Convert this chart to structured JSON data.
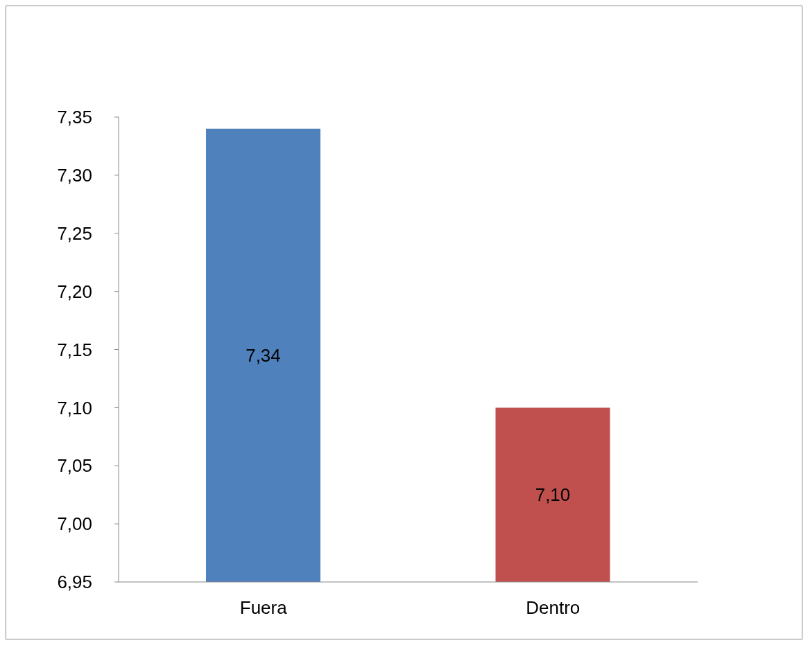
{
  "chart_data": {
    "type": "bar",
    "categories": [
      "Fuera",
      "Dentro"
    ],
    "values": [
      7.34,
      7.1
    ],
    "colors": [
      "#4f81bd",
      "#c0504d"
    ],
    "value_labels": [
      "7,34",
      "7,10"
    ],
    "ylim": [
      6.95,
      7.35
    ],
    "yticks": [
      {
        "value": 6.95,
        "label": "6,95"
      },
      {
        "value": 7.0,
        "label": "7,00"
      },
      {
        "value": 7.05,
        "label": "7,05"
      },
      {
        "value": 7.1,
        "label": "7,10"
      },
      {
        "value": 7.15,
        "label": "7,15"
      },
      {
        "value": 7.2,
        "label": "7,20"
      },
      {
        "value": 7.25,
        "label": "7,25"
      },
      {
        "value": 7.3,
        "label": "7,30"
      },
      {
        "value": 7.35,
        "label": "7,35"
      }
    ],
    "grid": false,
    "legend": false
  }
}
